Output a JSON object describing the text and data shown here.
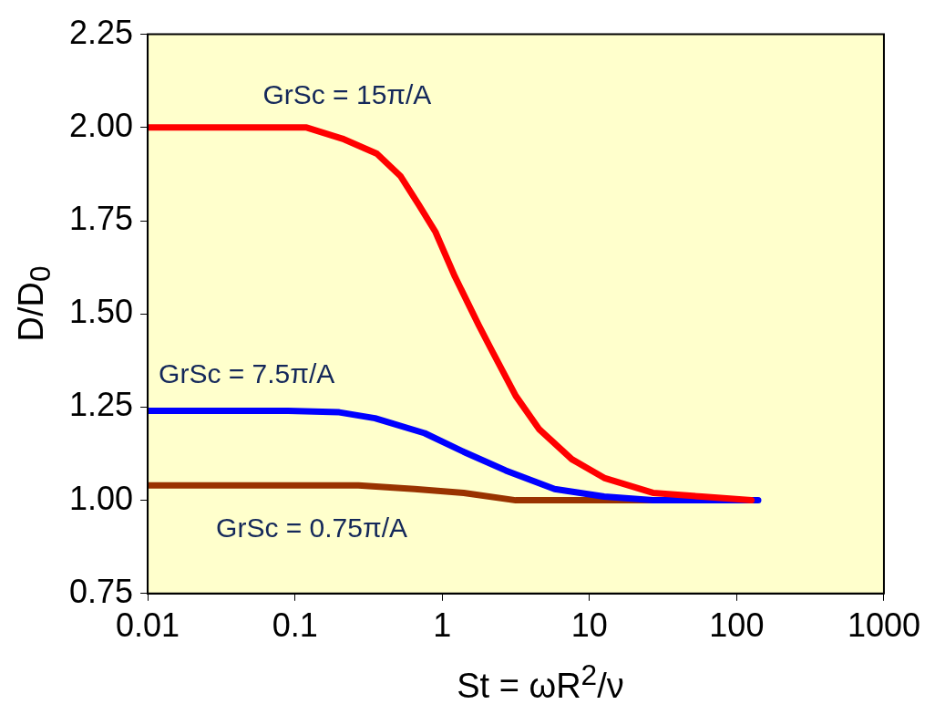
{
  "chart_data": {
    "type": "line",
    "xlabel": "St = ωR$^{2}$/ν",
    "ylabel": "D/D$_{0}$",
    "log": "x",
    "xlim": [
      0.01,
      1000
    ],
    "xticks": [
      0.01,
      0.1,
      1,
      10,
      100,
      1000
    ],
    "ylim": [
      0.75,
      2.25
    ],
    "yticks": [
      {
        "value": 0.75,
        "label": "0.75"
      },
      {
        "value": 1,
        "label": "1.00"
      },
      {
        "value": 1.25,
        "label": "1.25"
      },
      {
        "value": 1.5,
        "label": "1.50"
      },
      {
        "value": 1.75,
        "label": "1.75"
      },
      {
        "value": 2,
        "label": "2.00"
      },
      {
        "value": 2.25,
        "label": "2.25"
      }
    ],
    "grid": false,
    "legend": false,
    "marker": "none",
    "line_style": "solid",
    "series": [
      {
        "name": "GrSc = 15π/A",
        "color": "#ff0000",
        "x": [
          0.01,
          0.12,
          0.21,
          0.36,
          0.52,
          0.7,
          0.9,
          1.22,
          1.77,
          2.12,
          3.16,
          4.57,
          7.6,
          12.6,
          27,
          58,
          126
        ],
        "values": [
          2.0,
          2.0,
          1.97,
          1.93,
          1.87,
          1.79,
          1.72,
          1.6,
          1.47,
          1.41,
          1.28,
          1.19,
          1.11,
          1.06,
          1.02,
          1.01,
          1.0
        ]
      },
      {
        "name": "GrSc = 7.5π/A",
        "color": "#0000ff",
        "x": [
          0.01,
          0.09,
          0.2,
          0.35,
          0.76,
          1.4,
          2.7,
          5.8,
          12.6,
          27,
          140
        ],
        "values": [
          1.24,
          1.24,
          1.236,
          1.22,
          1.18,
          1.13,
          1.08,
          1.03,
          1.01,
          1.0,
          1.0
        ]
      },
      {
        "name": "GrSc = 0.75π/A",
        "color": "#993300",
        "x": [
          0.01,
          0.27,
          0.65,
          1.4,
          3.16,
          10,
          80
        ],
        "values": [
          1.04,
          1.04,
          1.03,
          1.02,
          1.0,
          1.0,
          1.0
        ]
      }
    ]
  }
}
